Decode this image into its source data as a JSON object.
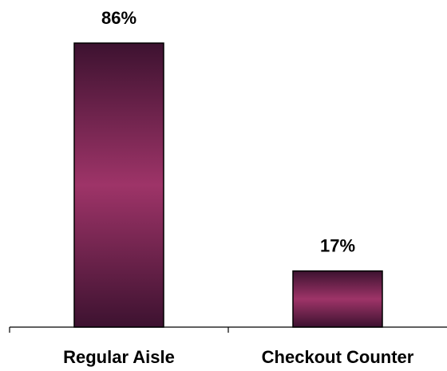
{
  "chart_data": {
    "type": "bar",
    "categories": [
      "Regular Aisle",
      "Checkout Counter"
    ],
    "values": [
      86,
      17
    ],
    "value_labels": [
      "86%",
      "17%"
    ],
    "unit": "%",
    "ylim": [
      0,
      100
    ],
    "grid": false,
    "legend": "none",
    "colors": {
      "bar_edge": "#3d1230",
      "bar_center": "#9e3468",
      "bar_outline": "#000000",
      "axis": "#000000"
    }
  }
}
